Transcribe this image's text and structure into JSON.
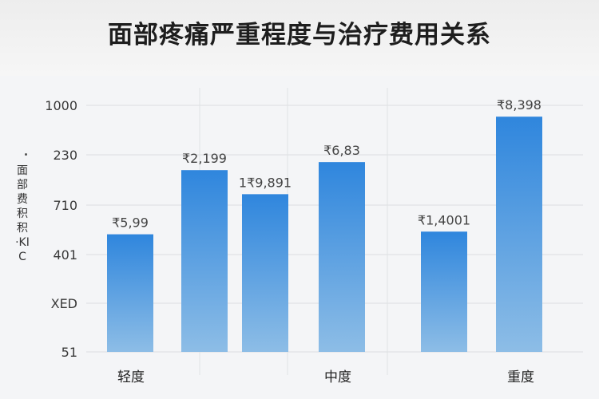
{
  "chart_data": {
    "type": "bar",
    "title": "面部疼痛严重程度与治疗费用关系",
    "ylabel": "面部费积积 ·KIC",
    "y_ticks": [
      "1000",
      "230",
      "710",
      "401",
      "XED",
      "51"
    ],
    "category_labels": [
      "轻度",
      "中度",
      "重度"
    ],
    "bars": [
      {
        "label": "₹5,99",
        "value": 4.4
      },
      {
        "label": "₹2,199",
        "value": 6.8
      },
      {
        "label": "1₹9,891",
        "value": 5.9
      },
      {
        "label": "₹6,83",
        "value": 7.1
      },
      {
        "label": "₹1,4001",
        "value": 4.5
      },
      {
        "label": "₹8,398",
        "value": 8.8
      }
    ],
    "ylim": [
      0,
      10
    ],
    "grid": true,
    "colors": {
      "bar_top": "#2f86dd",
      "bar_bottom": "#8dbde6"
    }
  }
}
